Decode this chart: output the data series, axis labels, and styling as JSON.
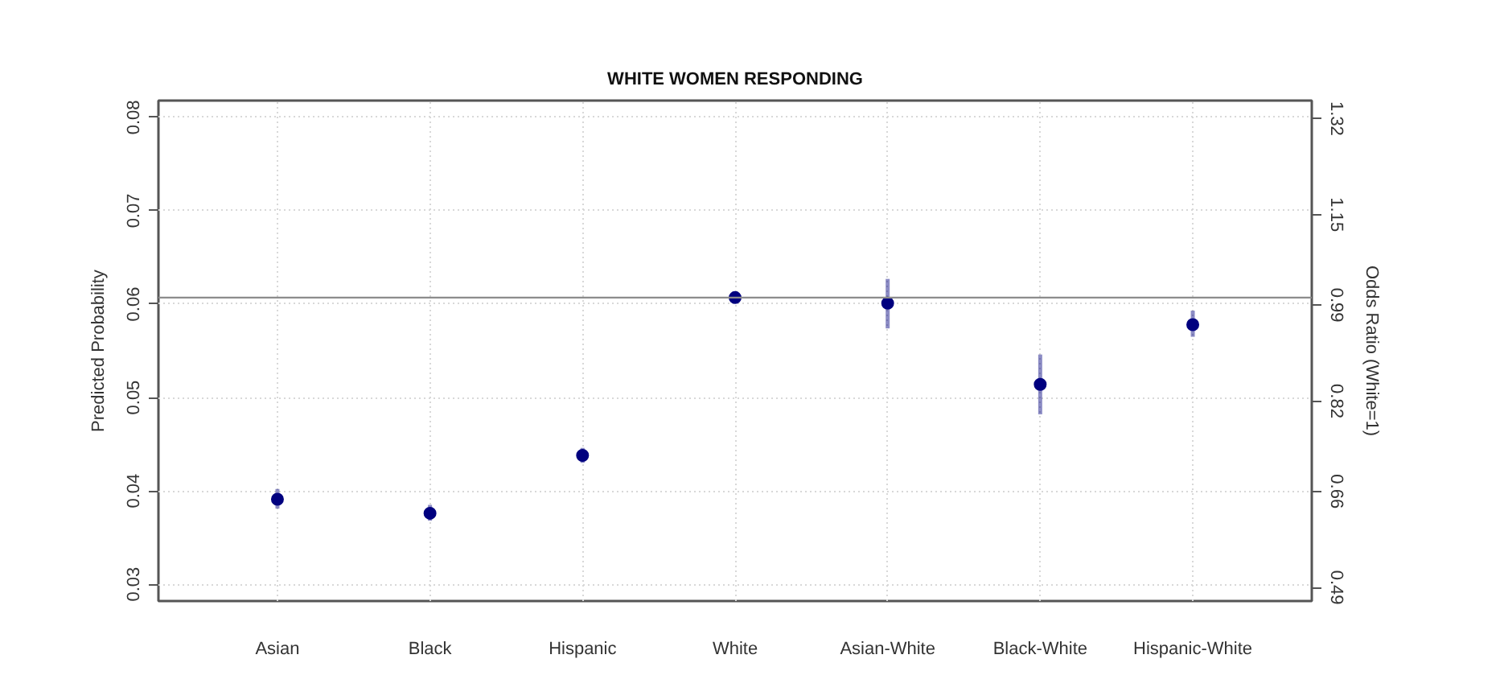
{
  "chart_data": {
    "type": "scatter",
    "title": "WHITE WOMEN RESPONDING",
    "ylabel": "Predicted Probability",
    "y2label": "Odds Ratio (White=1)",
    "categories": [
      "Asian",
      "Black",
      "Hispanic",
      "White",
      "Asian-White",
      "Black-White",
      "Hispanic-White"
    ],
    "series": [
      {
        "color": "#00007f",
        "values": [
          0.0391,
          0.0376,
          0.0438,
          0.0607,
          0.0601,
          0.0514,
          0.0578
        ],
        "errors": [
          [
            0.0381,
            0.0402
          ],
          [
            0.0368,
            0.0385
          ],
          [
            0.043,
            0.0446
          ],
          null,
          [
            0.0574,
            0.0627
          ],
          [
            0.0482,
            0.0546
          ],
          [
            0.0565,
            0.0593
          ]
        ]
      }
    ],
    "ylim": [
      0.0282,
      0.0818
    ],
    "yticks": [
      0.03,
      0.04,
      0.05,
      0.06,
      0.07,
      0.08
    ],
    "y2lim": [
      0.466,
      1.352
    ],
    "y2ticks": [
      0.49,
      0.66,
      0.82,
      0.99,
      1.15,
      1.32
    ],
    "ref_lines": [
      {
        "axis": "y",
        "value": 0.0607,
        "color": "#8c8c8c"
      }
    ],
    "grid": true,
    "marker": "circle"
  }
}
